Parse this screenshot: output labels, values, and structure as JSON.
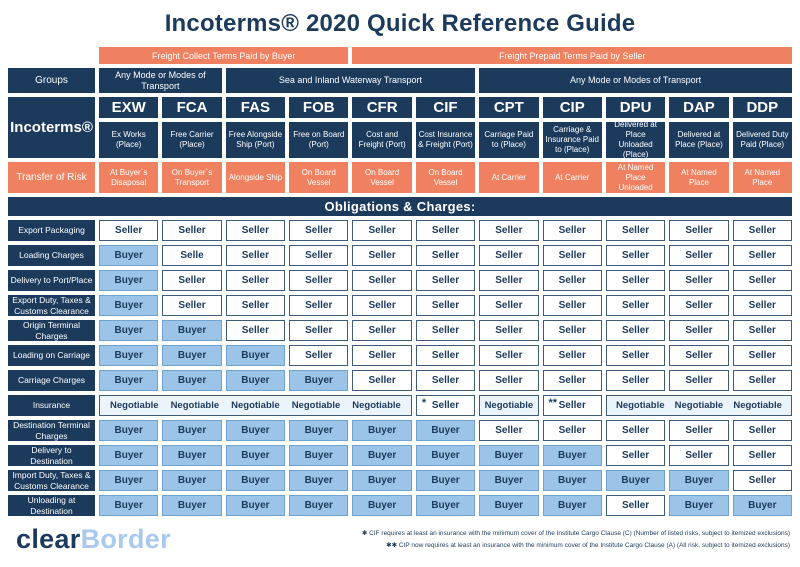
{
  "title": "Incoterms® 2020 Quick Reference Guide",
  "header": {
    "freight_bars": [
      {
        "label": "Freight Collect Terms Paid by Buyer",
        "columns": [
          "EXW",
          "FCA",
          "FAS",
          "FOB"
        ]
      },
      {
        "label": "Freight Prepaid Terms Paid by Seller",
        "columns": [
          "CFR",
          "CIF",
          "CPT",
          "CIP",
          "DPU",
          "DAP",
          "DDP"
        ]
      }
    ],
    "groups_label": "Groups",
    "groups": [
      {
        "label": "Any Mode or Modes of Transport",
        "span": 2
      },
      {
        "label": "Sea and Inland Waterway Transport",
        "span": 4
      },
      {
        "label": "Any Mode or Modes of Transport",
        "span": 5
      }
    ],
    "incoterms_label": "Incoterms®",
    "risk_label": "Transfer of Risk"
  },
  "obligations_header": "Obligations & Charges:",
  "chart_data": {
    "type": "table",
    "title": "Incoterms® 2020 Quick Reference Guide",
    "columns": [
      {
        "code": "EXW",
        "description": "Ex Works (Place)",
        "transfer_of_risk": "At Buyer`s Disaposal"
      },
      {
        "code": "FCA",
        "description": "Free Carrier (Place)",
        "transfer_of_risk": "On Buyer`s Transport"
      },
      {
        "code": "FAS",
        "description": "Free Alongside Ship (Port)",
        "transfer_of_risk": "Alongside Ship"
      },
      {
        "code": "FOB",
        "description": "Free on Board (Port)",
        "transfer_of_risk": "On Board Vessel"
      },
      {
        "code": "CFR",
        "description": "Cost and Freight (Port)",
        "transfer_of_risk": "On Board Vessel"
      },
      {
        "code": "CIF",
        "description": "Cost Insurance & Freight (Port)",
        "transfer_of_risk": "On Board Vessel"
      },
      {
        "code": "CPT",
        "description": "Carriage Paid to (Place)",
        "transfer_of_risk": "At Carrier"
      },
      {
        "code": "CIP",
        "description": "Carriage & Insurance Paid to (Place)",
        "transfer_of_risk": "At Carrier"
      },
      {
        "code": "DPU",
        "description": "Delivered at Place Unloaded (Place)",
        "transfer_of_risk": "At Named Place Unloaded"
      },
      {
        "code": "DAP",
        "description": "Delivered at Place (Place)",
        "transfer_of_risk": "At Named Place"
      },
      {
        "code": "DDP",
        "description": "Delivered Duty Paid (Place)",
        "transfer_of_risk": "At Named Place"
      }
    ],
    "rows": [
      {
        "label": "Export Packaging",
        "values": [
          "Seller",
          "Seller",
          "Seller",
          "Seller",
          "Seller",
          "Seller",
          "Seller",
          "Seller",
          "Seller",
          "Seller",
          "Seller"
        ]
      },
      {
        "label": "Loading Charges",
        "values": [
          "Buyer",
          "Selle",
          "Seller",
          "Seller",
          "Seller",
          "Seller",
          "Seller",
          "Seller",
          "Seller",
          "Seller",
          "Seller"
        ]
      },
      {
        "label": "Delivery to Port/Place",
        "values": [
          "Buyer",
          "Seller",
          "Seller",
          "Seller",
          "Seller",
          "Seller",
          "Seller",
          "Seller",
          "Seller",
          "Seller",
          "Seller"
        ]
      },
      {
        "label": "Export Duty, Taxes & Customs Clearance",
        "values": [
          "Buyer",
          "Seller",
          "Seller",
          "Seller",
          "Seller",
          "Seller",
          "Seller",
          "Seller",
          "Seller",
          "Seller",
          "Seller"
        ]
      },
      {
        "label": "Origin Terminal Charges",
        "values": [
          "Buyer",
          "Buyer",
          "Seller",
          "Seller",
          "Seller",
          "Seller",
          "Seller",
          "Seller",
          "Seller",
          "Seller",
          "Seller"
        ]
      },
      {
        "label": "Loading on Carriage",
        "values": [
          "Buyer",
          "Buyer",
          "Buyer",
          "Seller",
          "Seller",
          "Seller",
          "Seller",
          "Seller",
          "Seller",
          "Seller",
          "Seller"
        ]
      },
      {
        "label": "Carriage Charges",
        "values": [
          "Buyer",
          "Buyer",
          "Buyer",
          "Buyer",
          "Seller",
          "Seller",
          "Seller",
          "Seller",
          "Seller",
          "Seller",
          "Seller"
        ]
      },
      {
        "label": "Insurance",
        "segments": [
          {
            "kind": "strip",
            "span": 5,
            "texts": [
              "Negotiable",
              "Negotiable",
              "Negotiable",
              "Negotiable",
              "Negotiable"
            ]
          },
          {
            "kind": "seller",
            "marker": "*",
            "text": "Seller"
          },
          {
            "kind": "negotiable",
            "text": "Negotiable"
          },
          {
            "kind": "seller",
            "marker": "**",
            "text": "Seller"
          },
          {
            "kind": "strip",
            "span": 3,
            "texts": [
              "Negotiable",
              "Negotiable",
              "Negotiable"
            ]
          }
        ]
      },
      {
        "label": "Destination Terminal Charges",
        "values": [
          "Buyer",
          "Buyer",
          "Buyer",
          "Buyer",
          "Buyer",
          "Buyer",
          "Seller",
          "Seller",
          "Seller",
          "Seller",
          "Seller"
        ]
      },
      {
        "label": "Delivery to Destination",
        "values": [
          "Buyer",
          "Buyer",
          "Buyer",
          "Buyer",
          "Buyer",
          "Buyer",
          "Buyer",
          "Buyer",
          "Seller",
          "Seller",
          "Seller"
        ]
      },
      {
        "label": "Import Duty, Taxes & Customs Clearance",
        "values": [
          "Buyer",
          "Buyer",
          "Buyer",
          "Buyer",
          "Buyer",
          "Buyer",
          "Buyer",
          "Buyer",
          "Buyer",
          "Buyer",
          "Seller"
        ]
      },
      {
        "label": "Unloading at Destination",
        "values": [
          "Buyer",
          "Buyer",
          "Buyer",
          "Buyer",
          "Buyer",
          "Buyer",
          "Buyer",
          "Buyer",
          "Seller",
          "Buyer",
          "Buyer"
        ]
      }
    ]
  },
  "footer": {
    "logo": {
      "clear": "clear",
      "border": "Border"
    },
    "footnotes": [
      "✱  CIF requires at least an insurance with the minimum cover of the Institute Cargo Clause (C) (Number of listed risks, subject to itemized exclusions)",
      "✱✱  CIP now requires at least an insurance with the minimum cover of the Institute Cargo Clause (A) (All risk, subject to itemized exclusions)"
    ]
  },
  "colors": {
    "navy": "#1C3A5C",
    "orange": "#F08160",
    "buyer_fill": "#9CC3E8",
    "seller_fill": "#FFFFFF",
    "negotiable_fill": "#EBF3FB",
    "logo_light_blue": "#A9C9EE"
  }
}
